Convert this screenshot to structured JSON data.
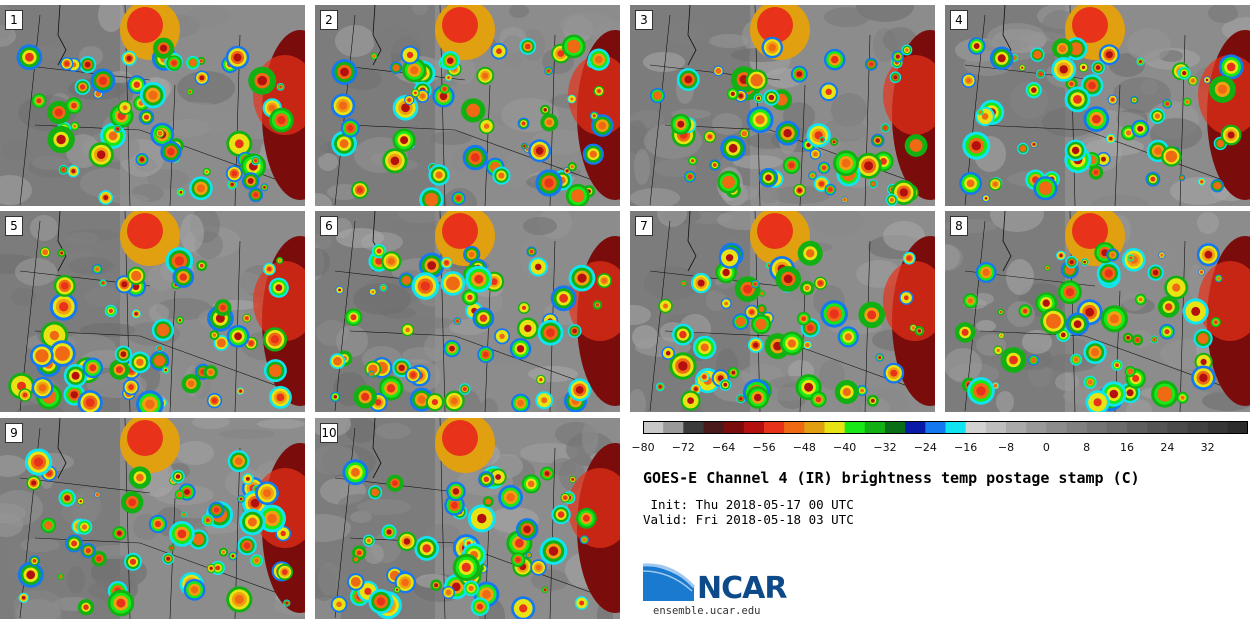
{
  "panels": [
    "1",
    "2",
    "3",
    "4",
    "5",
    "6",
    "7",
    "8",
    "9",
    "10"
  ],
  "colorbar": {
    "colors": [
      "#c8c8c8",
      "#9a9a9a",
      "#3a3a3a",
      "#4a1a1a",
      "#7a0c0c",
      "#b51010",
      "#e8321a",
      "#f06a14",
      "#e0a010",
      "#e8e414",
      "#18e818",
      "#12b012",
      "#0a6e16",
      "#0a1aa8",
      "#1478f0",
      "#10e4f0",
      "#d2d2d2",
      "#bebebe",
      "#aaaaaa",
      "#999999",
      "#8c8c8c",
      "#808080",
      "#747474",
      "#6a6a6a",
      "#5e5e5e",
      "#545454",
      "#4a4a4a",
      "#404040",
      "#363636",
      "#2c2c2c"
    ],
    "ticks": [
      "−80",
      "−72",
      "−64",
      "−56",
      "−48",
      "−40",
      "−32",
      "−24",
      "−16",
      "−8",
      "0",
      "8",
      "16",
      "24",
      "32"
    ]
  },
  "title": "GOES-E Channel 4 (IR) brightness temp postage stamp (C)",
  "init": " Init: Thu 2018-05-17 00 UTC",
  "valid": "Valid: Fri 2018-05-18 03 UTC",
  "logo_text": "NCAR",
  "website": "ensemble.ucar.edu"
}
